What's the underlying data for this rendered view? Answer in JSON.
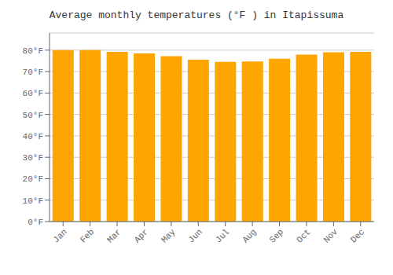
{
  "chart_data": {
    "type": "bar",
    "title": "Average monthly temperatures (°F ) in Itapissuma",
    "categories": [
      "Jan",
      "Feb",
      "Mar",
      "Apr",
      "May",
      "Jun",
      "Jul",
      "Aug",
      "Sep",
      "Oct",
      "Nov",
      "Dec"
    ],
    "values": [
      80.0,
      80.0,
      79.2,
      78.5,
      77.2,
      75.5,
      74.5,
      74.7,
      76.0,
      77.9,
      79.0,
      79.2
    ],
    "color": "#FFA500",
    "ylim": [
      0,
      88
    ],
    "yticks": [
      {
        "value": 0,
        "label": "0°F"
      },
      {
        "value": 10,
        "label": "10°F"
      },
      {
        "value": 20,
        "label": "20°F"
      },
      {
        "value": 30,
        "label": "30°F"
      },
      {
        "value": 40,
        "label": "40°F"
      },
      {
        "value": 50,
        "label": "50°F"
      },
      {
        "value": 60,
        "label": "60°F"
      },
      {
        "value": 70,
        "label": "70°F"
      },
      {
        "value": 80,
        "label": "80°F"
      }
    ],
    "grid": true
  }
}
